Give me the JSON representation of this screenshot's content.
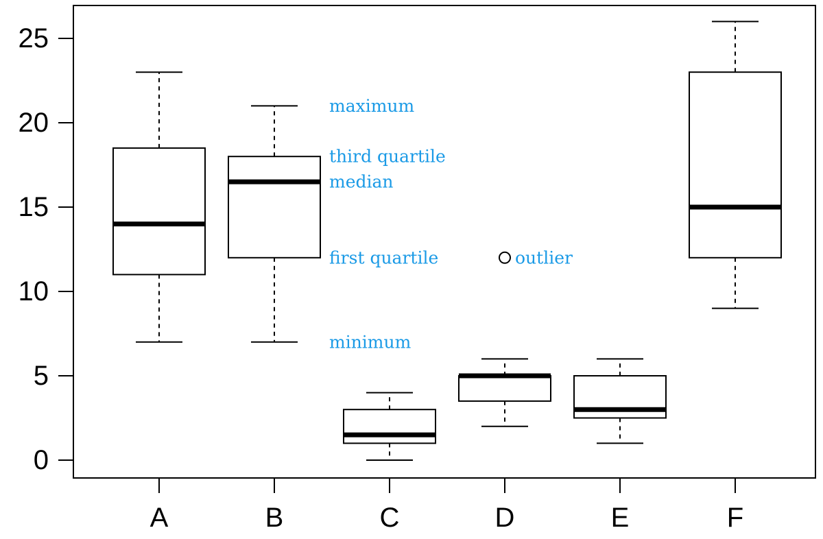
{
  "chart_data": {
    "type": "boxplot",
    "categories": [
      "A",
      "B",
      "C",
      "D",
      "E",
      "F"
    ],
    "boxes": [
      {
        "name": "A",
        "min": 7,
        "q1": 11,
        "median": 14,
        "q3": 18.5,
        "max": 23,
        "outliers": []
      },
      {
        "name": "B",
        "min": 7,
        "q1": 12,
        "median": 16.5,
        "q3": 18,
        "max": 21,
        "outliers": []
      },
      {
        "name": "C",
        "min": 0,
        "q1": 1,
        "median": 1.5,
        "q3": 3,
        "max": 4,
        "outliers": []
      },
      {
        "name": "D",
        "min": 2,
        "q1": 3.5,
        "median": 5,
        "q3": 5,
        "max": 6,
        "outliers": [
          12
        ]
      },
      {
        "name": "E",
        "min": 1,
        "q1": 2.5,
        "median": 3,
        "q3": 5,
        "max": 6,
        "outliers": []
      },
      {
        "name": "F",
        "min": 9,
        "q1": 12,
        "median": 15,
        "q3": 23,
        "max": 26,
        "outliers": []
      }
    ],
    "y_ticks": [
      0,
      5,
      10,
      15,
      20,
      25
    ],
    "ylim": [
      -1,
      27
    ],
    "annotations": [
      {
        "text": "maximum",
        "category": "B",
        "y": 21
      },
      {
        "text": "third quartile",
        "category": "B",
        "y": 18
      },
      {
        "text": "median",
        "category": "B",
        "y": 16.5
      },
      {
        "text": "first quartile",
        "category": "B",
        "y": 12
      },
      {
        "text": "minimum",
        "category": "B",
        "y": 7
      },
      {
        "text": "outlier",
        "category": "D",
        "y": 12
      }
    ],
    "annotation_color": "#1a9ae6",
    "title": "",
    "xlabel": "",
    "ylabel": ""
  }
}
